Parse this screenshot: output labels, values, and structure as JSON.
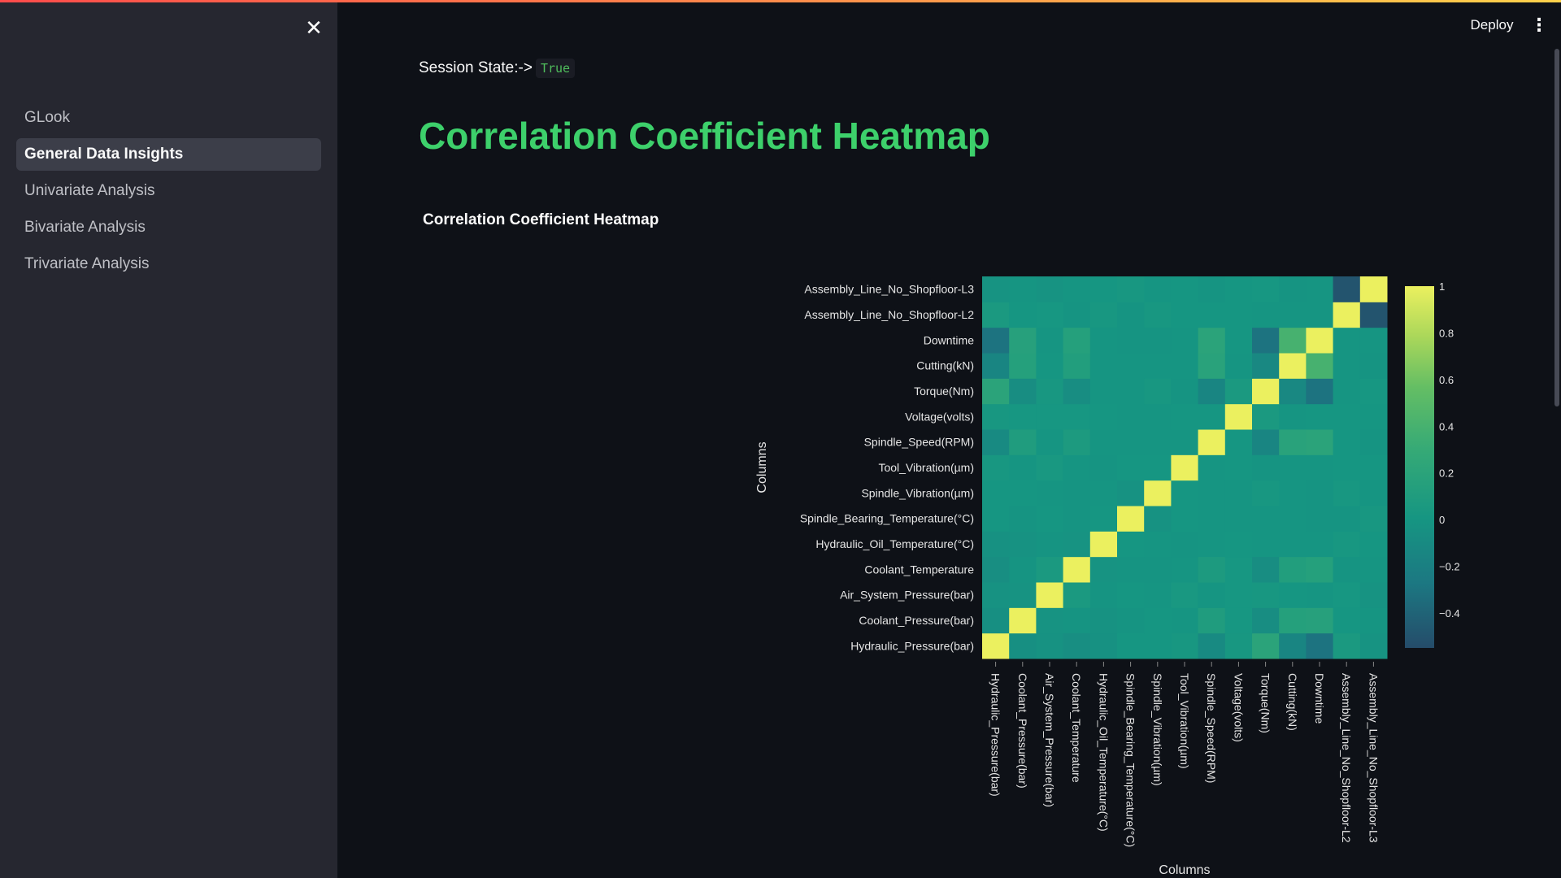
{
  "sidebar": {
    "close_icon": "close-icon",
    "items": [
      {
        "label": "GLook",
        "active": false
      },
      {
        "label": "General Data Insights",
        "active": true
      },
      {
        "label": "Univariate Analysis",
        "active": false
      },
      {
        "label": "Bivariate Analysis",
        "active": false
      },
      {
        "label": "Trivariate Analysis",
        "active": false
      }
    ]
  },
  "header": {
    "deploy_label": "Deploy",
    "menu_icon": "kebab-menu-icon"
  },
  "main": {
    "session_label": "Session State:->",
    "session_value": "True",
    "page_title": "Correlation Coefficient Heatmap"
  },
  "colors": {
    "accent_green": "#3dd06b",
    "sidebar_bg": "#262730",
    "main_bg": "#0e1117"
  },
  "chart_data": {
    "type": "heatmap",
    "title": "Correlation Coefficient Heatmap",
    "xlabel": "Columns",
    "ylabel": "Columns",
    "colorscale": "Viridis-like (teal to yellow)",
    "zrange": [
      -0.55,
      1
    ],
    "colorbar_ticks": [
      "1",
      "0.8",
      "0.6",
      "0.4",
      "0.2",
      "0",
      "−0.2",
      "−0.4"
    ],
    "colorbar_tick_values": [
      1,
      0.8,
      0.6,
      0.4,
      0.2,
      0,
      -0.2,
      -0.4
    ],
    "x": [
      "Hydraulic_Pressure(bar)",
      "Coolant_Pressure(bar)",
      "Air_System_Pressure(bar)",
      "Coolant_Temperature",
      "Hydraulic_Oil_Temperature(°C)",
      "Spindle_Bearing_Temperature(°C)",
      "Spindle_Vibration(µm)",
      "Tool_Vibration(µm)",
      "Spindle_Speed(RPM)",
      "Voltage(volts)",
      "Torque(Nm)",
      "Cutting(kN)",
      "Downtime",
      "Assembly_Line_No_Shopfloor-L2",
      "Assembly_Line_No_Shopfloor-L3"
    ],
    "y": [
      "Hydraulic_Pressure(bar)",
      "Coolant_Pressure(bar)",
      "Air_System_Pressure(bar)",
      "Coolant_Temperature",
      "Hydraulic_Oil_Temperature(°C)",
      "Spindle_Bearing_Temperature(°C)",
      "Spindle_Vibration(µm)",
      "Tool_Vibration(µm)",
      "Spindle_Speed(RPM)",
      "Voltage(volts)",
      "Torque(Nm)",
      "Cutting(kN)",
      "Downtime",
      "Assembly_Line_No_Shopfloor-L2",
      "Assembly_Line_No_Shopfloor-L3"
    ],
    "z": [
      [
        1,
        -0.06,
        -0.03,
        -0.07,
        -0.04,
        0.01,
        0.01,
        0.03,
        -0.1,
        0.03,
        0.2,
        -0.15,
        -0.3,
        0.05,
        -0.02
      ],
      [
        -0.06,
        1,
        -0.02,
        -0.01,
        -0.03,
        -0.01,
        0.01,
        0.0,
        0.1,
        0.02,
        -0.08,
        0.15,
        0.16,
        0.01,
        0.0
      ],
      [
        -0.03,
        -0.02,
        1,
        0.05,
        -0.01,
        0.01,
        0.0,
        0.04,
        0.0,
        0.02,
        0.03,
        0.01,
        0.0,
        0.02,
        -0.02
      ],
      [
        -0.07,
        -0.01,
        0.05,
        1,
        -0.02,
        -0.01,
        -0.01,
        0.0,
        0.07,
        0.02,
        -0.08,
        0.12,
        0.15,
        -0.01,
        0.0
      ],
      [
        -0.04,
        -0.03,
        -0.01,
        -0.02,
        1,
        0.01,
        0.0,
        -0.01,
        0.0,
        0.01,
        0.0,
        0.0,
        0.0,
        0.03,
        0.01
      ],
      [
        0.01,
        -0.01,
        0.01,
        -0.01,
        0.01,
        1,
        -0.03,
        0.01,
        0.0,
        0.0,
        0.0,
        0.0,
        -0.01,
        -0.01,
        0.03
      ],
      [
        0.01,
        0.01,
        0.0,
        -0.01,
        0.0,
        -0.03,
        1,
        0.01,
        0.0,
        0.0,
        0.03,
        0.0,
        -0.01,
        0.03,
        0.0
      ],
      [
        0.03,
        0.0,
        0.04,
        0.0,
        -0.01,
        0.01,
        0.01,
        1,
        0.0,
        0.01,
        -0.01,
        0.0,
        0.0,
        0.01,
        0.01
      ],
      [
        -0.1,
        0.1,
        0.0,
        0.07,
        0.0,
        0.0,
        0.0,
        0.0,
        1,
        0.01,
        -0.15,
        0.18,
        0.2,
        0.01,
        -0.01
      ],
      [
        0.03,
        0.02,
        0.02,
        0.02,
        0.01,
        0.0,
        0.0,
        0.01,
        0.01,
        1,
        0.05,
        0.0,
        0.01,
        0.01,
        0.01
      ],
      [
        0.2,
        -0.08,
        0.03,
        -0.08,
        0.0,
        0.0,
        0.03,
        -0.01,
        -0.15,
        0.05,
        1,
        -0.12,
        -0.3,
        0.0,
        0.02
      ],
      [
        -0.15,
        0.15,
        0.01,
        0.12,
        0.0,
        0.0,
        0.0,
        0.0,
        0.18,
        0.0,
        -0.12,
        1,
        0.4,
        0.0,
        -0.01
      ],
      [
        -0.3,
        0.16,
        0.0,
        0.15,
        0.0,
        -0.01,
        -0.01,
        0.0,
        0.2,
        0.01,
        -0.3,
        0.4,
        1,
        0.0,
        0.0
      ],
      [
        0.05,
        0.01,
        0.02,
        -0.01,
        0.03,
        -0.01,
        0.03,
        0.01,
        0.01,
        0.01,
        0.0,
        0.0,
        0.0,
        1,
        -0.5
      ],
      [
        -0.02,
        0.0,
        -0.02,
        0.0,
        0.01,
        0.03,
        0.0,
        0.01,
        -0.01,
        0.01,
        0.02,
        -0.01,
        0.0,
        -0.5,
        1
      ]
    ]
  }
}
